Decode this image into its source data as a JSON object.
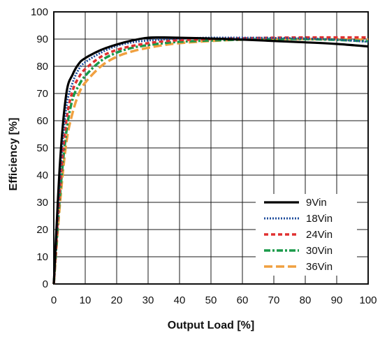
{
  "chart_data": {
    "type": "line",
    "title": "",
    "xlabel": "Output Load [%]",
    "ylabel": "Efficiency [%]",
    "xlim": [
      0,
      100
    ],
    "ylim": [
      0,
      100
    ],
    "xticks": [
      0,
      10,
      20,
      30,
      40,
      50,
      60,
      70,
      80,
      90,
      100
    ],
    "yticks": [
      0,
      10,
      20,
      30,
      40,
      50,
      60,
      70,
      80,
      90,
      100
    ],
    "grid": true,
    "legend_position": "bottom-right",
    "x": [
      0,
      2,
      4,
      6,
      8,
      10,
      15,
      20,
      25,
      30,
      35,
      40,
      50,
      60,
      70,
      80,
      90,
      100
    ],
    "series": [
      {
        "name": "9Vin",
        "color": "#000000",
        "style": "solid",
        "values": [
          0,
          45,
          70,
          77,
          81,
          83,
          86,
          88,
          89.5,
          90.5,
          90.6,
          90.5,
          90.2,
          89.8,
          89.3,
          88.8,
          88.2,
          87.3
        ]
      },
      {
        "name": "18Vin",
        "color": "#1f4e9c",
        "style": "dotted",
        "values": [
          0,
          40,
          65,
          74,
          79,
          81.5,
          85,
          87.5,
          88.8,
          89.5,
          89.9,
          90.2,
          90.5,
          90.5,
          90.4,
          90.2,
          89.8,
          89.0
        ]
      },
      {
        "name": "24Vin",
        "color": "#e03030",
        "style": "dashed",
        "values": [
          0,
          36,
          60,
          71,
          76,
          79,
          83.5,
          86,
          87.5,
          88.5,
          89.2,
          89.6,
          90.0,
          90.3,
          90.5,
          90.6,
          90.6,
          90.6
        ]
      },
      {
        "name": "30Vin",
        "color": "#1a9a4a",
        "style": "dashdot",
        "values": [
          0,
          33,
          56,
          68,
          73,
          76.5,
          82,
          85,
          86.8,
          87.8,
          88.5,
          89.0,
          89.5,
          89.8,
          90.0,
          90.0,
          89.7,
          89.2
        ]
      },
      {
        "name": "36Vin",
        "color": "#f0a040",
        "style": "longdash",
        "values": [
          0,
          30,
          52,
          63,
          70,
          74,
          80,
          83.5,
          85.5,
          86.8,
          87.8,
          88.5,
          89.3,
          89.8,
          90.0,
          90.0,
          89.9,
          89.8
        ]
      }
    ]
  }
}
